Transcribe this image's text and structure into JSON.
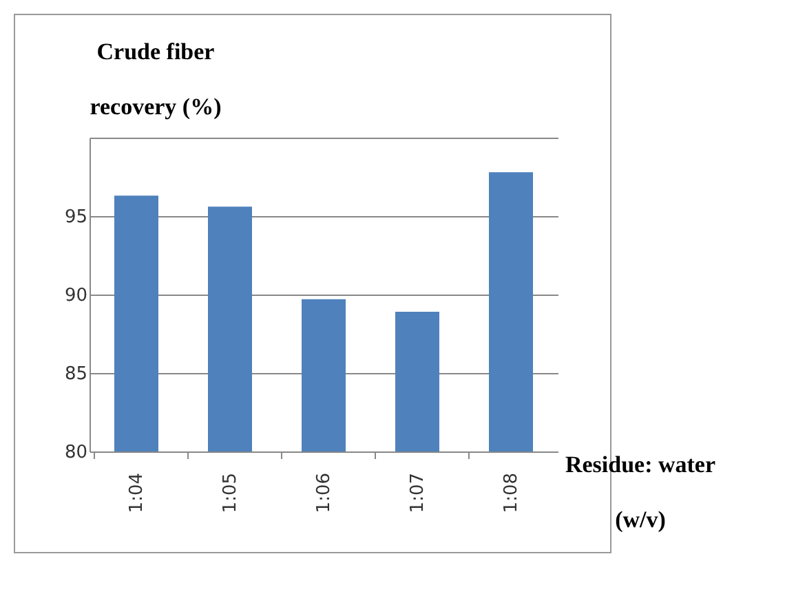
{
  "chart_data": {
    "type": "bar",
    "title": "Crude fiber recovery (%)",
    "xlabel": "Residue: water (w/v)",
    "categories": [
      "1:04",
      "1:05",
      "1:06",
      "1:07",
      "1:08"
    ],
    "values": [
      96.3,
      95.6,
      89.7,
      88.9,
      97.8
    ],
    "color": "#4f81bd",
    "ylim": [
      80,
      100
    ],
    "yticks": [
      80,
      85,
      90,
      95,
      {
        "value": 100,
        "label": null
      }
    ],
    "grid": "y"
  }
}
